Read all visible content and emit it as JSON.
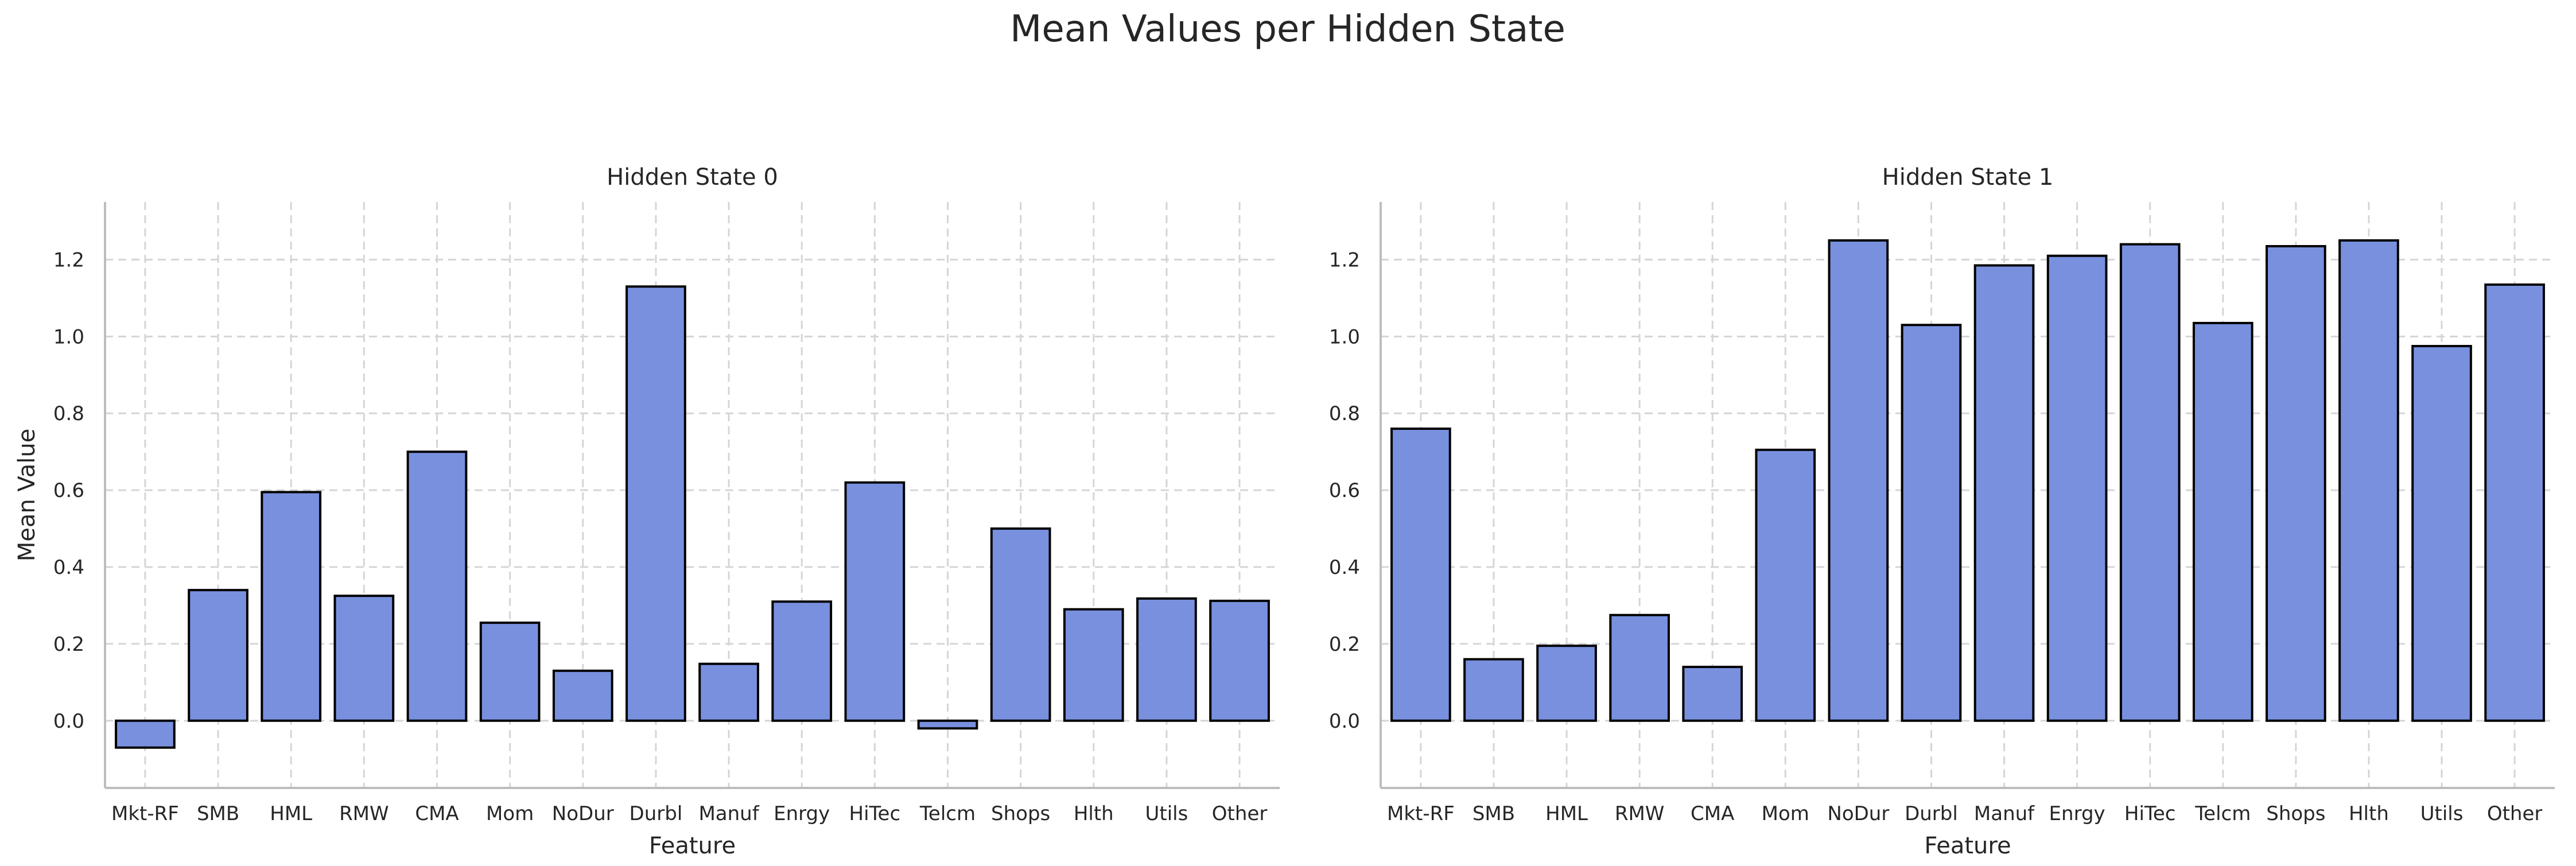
{
  "figure": {
    "title": "Mean Values per Hidden State"
  },
  "colors": {
    "bar_fill": "#7890de",
    "bar_edge": "#000000",
    "grid": "#d5d5d5",
    "spine": "#bdbdbd"
  },
  "chart_data": [
    {
      "type": "bar",
      "title": "Hidden State 0",
      "xlabel": "Feature",
      "ylabel": "Mean Value",
      "categories": [
        "Mkt-RF",
        "SMB",
        "HML",
        "RMW",
        "CMA",
        "Mom",
        "NoDur",
        "Durbl",
        "Manuf",
        "Enrgy",
        "HiTec",
        "Telcm",
        "Shops",
        "Hlth",
        "Utils",
        "Other"
      ],
      "values": [
        -0.07,
        0.34,
        0.595,
        0.325,
        0.7,
        0.255,
        0.13,
        1.13,
        0.148,
        0.31,
        0.62,
        -0.02,
        0.5,
        0.29,
        0.318,
        0.312
      ],
      "yticks": [
        "0.0",
        "0.2",
        "0.4",
        "0.6",
        "0.8",
        "1.0",
        "1.2"
      ],
      "ylim": [
        -0.175,
        1.35
      ],
      "grid": true
    },
    {
      "type": "bar",
      "title": "Hidden State 1",
      "xlabel": "Feature",
      "ylabel": "",
      "categories": [
        "Mkt-RF",
        "SMB",
        "HML",
        "RMW",
        "CMA",
        "Mom",
        "NoDur",
        "Durbl",
        "Manuf",
        "Enrgy",
        "HiTec",
        "Telcm",
        "Shops",
        "Hlth",
        "Utils",
        "Other"
      ],
      "values": [
        0.76,
        0.16,
        0.195,
        0.275,
        0.14,
        0.705,
        1.25,
        1.03,
        1.185,
        1.21,
        1.24,
        1.035,
        1.235,
        1.25,
        0.975,
        1.135
      ],
      "yticks": [
        "0.0",
        "0.2",
        "0.4",
        "0.6",
        "0.8",
        "1.0",
        "1.2"
      ],
      "ylim": [
        -0.175,
        1.35
      ],
      "grid": true
    }
  ]
}
